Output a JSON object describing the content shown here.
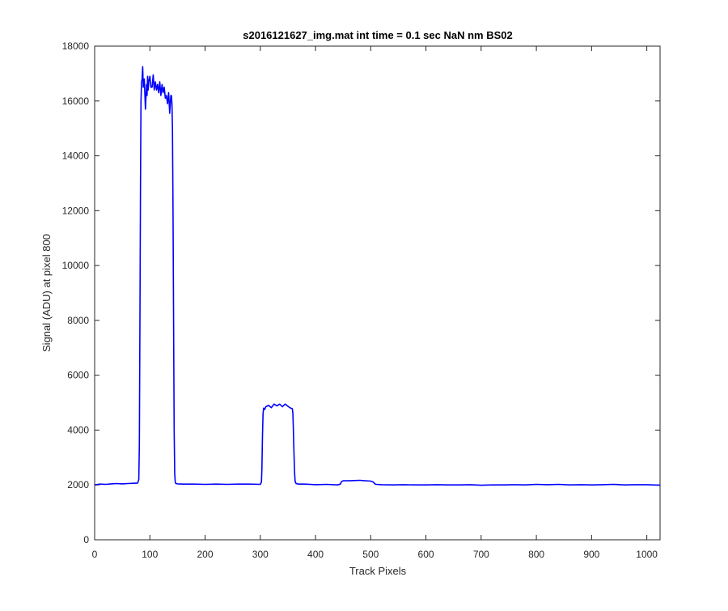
{
  "chart_data": {
    "type": "line",
    "title": "s2016121627_img.mat int time = 0.1 sec  NaN nm BS02",
    "xlabel": "Track Pixels",
    "ylabel": "Signal (ADU) at pixel 800",
    "xlim": [
      0,
      1024
    ],
    "ylim": [
      0,
      18000
    ],
    "xticks": [
      0,
      100,
      200,
      300,
      400,
      500,
      600,
      700,
      800,
      900,
      1000
    ],
    "yticks": [
      0,
      2000,
      4000,
      6000,
      8000,
      10000,
      12000,
      14000,
      16000,
      18000
    ],
    "grid": false,
    "line_color": "#0000ff",
    "series": [
      {
        "x": [
          0,
          10,
          20,
          30,
          40,
          50,
          60,
          70,
          78,
          80,
          81,
          82,
          83,
          84,
          85,
          86,
          87,
          88,
          90,
          92,
          94,
          95,
          96,
          97,
          98,
          100,
          102,
          104,
          106,
          108,
          110,
          112,
          114,
          116,
          118,
          120,
          122,
          124,
          126,
          128,
          130,
          132,
          134,
          136,
          138,
          139,
          140,
          141,
          142,
          143,
          144,
          145,
          146,
          147,
          148,
          150,
          160,
          180,
          200,
          220,
          240,
          260,
          280,
          300,
          302,
          303,
          304,
          305,
          306,
          308,
          310,
          315,
          320,
          325,
          330,
          335,
          340,
          345,
          350,
          355,
          358,
          359,
          360,
          361,
          362,
          363,
          364,
          365,
          367,
          370,
          380,
          390,
          400,
          420,
          440,
          445,
          447,
          450,
          460,
          470,
          480,
          490,
          500,
          505,
          508,
          510,
          520,
          540,
          560,
          580,
          600,
          620,
          640,
          660,
          680,
          700,
          720,
          740,
          760,
          780,
          800,
          820,
          840,
          860,
          880,
          900,
          920,
          940,
          960,
          980,
          1000,
          1010,
          1024
        ],
        "y": [
          2000,
          2030,
          2020,
          2040,
          2050,
          2040,
          2050,
          2060,
          2070,
          2200,
          3500,
          8000,
          13000,
          16000,
          16700,
          16800,
          17250,
          16500,
          16800,
          15700,
          16600,
          16200,
          16900,
          16400,
          16700,
          16900,
          16500,
          16500,
          16950,
          16400,
          16700,
          16400,
          16600,
          16300,
          16700,
          16200,
          16600,
          16300,
          16500,
          16100,
          16200,
          15900,
          16300,
          15550,
          16200,
          16200,
          15900,
          15000,
          12000,
          8000,
          4000,
          2400,
          2100,
          2050,
          2050,
          2040,
          2030,
          2030,
          2020,
          2030,
          2020,
          2030,
          2030,
          2020,
          2100,
          2600,
          3800,
          4600,
          4800,
          4750,
          4850,
          4900,
          4820,
          4950,
          4880,
          4950,
          4850,
          4950,
          4870,
          4800,
          4780,
          4600,
          4000,
          3200,
          2500,
          2150,
          2080,
          2050,
          2040,
          2030,
          2030,
          2020,
          2010,
          2020,
          2000,
          2030,
          2120,
          2150,
          2150,
          2160,
          2170,
          2150,
          2140,
          2100,
          2030,
          2020,
          2010,
          2000,
          2010,
          2000,
          2000,
          2010,
          2000,
          2000,
          2010,
          1990,
          2000,
          2000,
          2010,
          2000,
          2020,
          2010,
          2020,
          2000,
          2010,
          2000,
          2010,
          2020,
          2000,
          2010,
          2010,
          2000,
          1990
        ]
      }
    ]
  }
}
